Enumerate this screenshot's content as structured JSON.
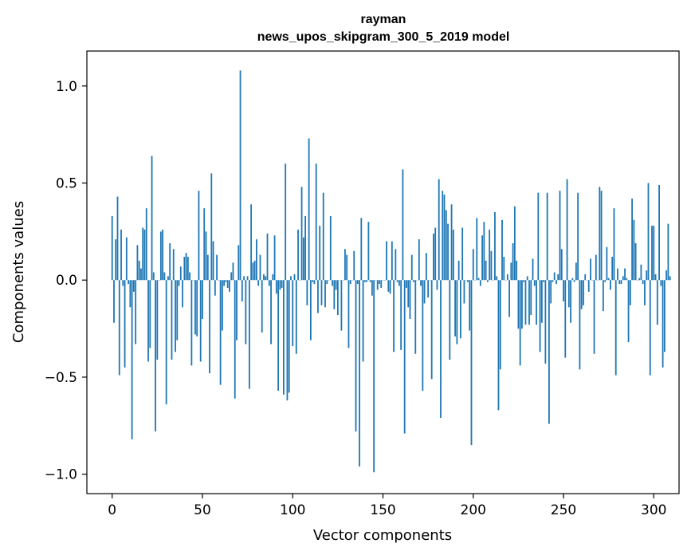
{
  "chart_data": {
    "type": "bar",
    "title": "rayman",
    "subtitle": "news_upos_skipgram_300_5_2019 model",
    "xlabel": "Vector components",
    "ylabel": "Components values",
    "xlim": [
      -14,
      314
    ],
    "ylim": [
      -1.1,
      1.18
    ],
    "xticks": [
      0,
      50,
      100,
      150,
      200,
      250,
      300
    ],
    "yticks": [
      -1.0,
      -0.5,
      0.0,
      0.5,
      1.0
    ],
    "xtick_labels": [
      "0",
      "50",
      "100",
      "150",
      "200",
      "250",
      "300"
    ],
    "ytick_labels": [
      "−1.0",
      "−0.5",
      "0.0",
      "0.5",
      "1.0"
    ],
    "bar_color": "#1f77b4",
    "grid": false,
    "values": [
      0.33,
      -0.22,
      0.21,
      0.43,
      -0.49,
      0.26,
      -0.03,
      -0.45,
      0.22,
      -0.02,
      -0.14,
      -0.82,
      -0.06,
      -0.33,
      0.18,
      0.1,
      0.06,
      0.27,
      0.26,
      0.37,
      -0.42,
      -0.35,
      0.64,
      0.04,
      -0.78,
      -0.41,
      0.0,
      0.25,
      0.26,
      0.04,
      -0.64,
      0.02,
      0.19,
      -0.41,
      0.16,
      -0.37,
      -0.31,
      -0.03,
      0.07,
      -0.14,
      0.12,
      0.14,
      0.12,
      0.04,
      -0.44,
      0.0,
      -0.28,
      -0.29,
      0.46,
      -0.42,
      -0.2,
      0.37,
      0.25,
      0.13,
      -0.48,
      0.55,
      0.2,
      -0.08,
      0.13,
      0.0,
      -0.54,
      -0.26,
      -0.03,
      -0.01,
      -0.04,
      -0.06,
      0.04,
      0.09,
      -0.61,
      -0.31,
      0.18,
      1.08,
      -0.11,
      0.02,
      -0.33,
      0.02,
      -0.56,
      0.39,
      0.09,
      0.1,
      0.21,
      -0.03,
      0.13,
      -0.27,
      0.03,
      0.02,
      0.24,
      -0.03,
      -0.33,
      0.03,
      0.23,
      -0.07,
      -0.57,
      -0.05,
      -0.04,
      -0.59,
      0.6,
      -0.62,
      -0.58,
      0.02,
      -0.34,
      0.03,
      -0.38,
      0.26,
      0.0,
      0.48,
      0.22,
      0.33,
      -0.13,
      0.73,
      -0.31,
      -0.01,
      -0.02,
      0.6,
      -0.17,
      0.28,
      -0.13,
      0.45,
      -0.14,
      -0.02,
      0.0,
      0.33,
      -0.03,
      -0.15,
      -0.05,
      -0.18,
      0.0,
      -0.26,
      0.0,
      0.16,
      0.13,
      -0.35,
      -0.02,
      0.0,
      0.15,
      -0.78,
      -0.02,
      -0.96,
      0.32,
      -0.42,
      -0.01,
      -0.01,
      0.3,
      -0.01,
      -0.08,
      -0.99,
      0.0,
      -0.05,
      -0.02,
      -0.04,
      0.0,
      0.0,
      0.2,
      -0.06,
      -0.07,
      0.2,
      -0.37,
      0.16,
      -0.01,
      -0.03,
      -0.36,
      0.57,
      -0.79,
      -0.04,
      -0.14,
      -0.2,
      0.13,
      -0.01,
      -0.38,
      0.0,
      0.21,
      -0.03,
      -0.57,
      -0.12,
      0.14,
      -0.09,
      0.0,
      -0.51,
      0.24,
      0.27,
      -0.05,
      0.52,
      -0.71,
      0.46,
      0.44,
      0.36,
      0.29,
      -0.41,
      0.39,
      0.26,
      -0.29,
      -0.33,
      0.1,
      -0.3,
      0.27,
      -0.12,
      0.0,
      -0.01,
      -0.26,
      -0.85,
      0.16,
      0.0,
      0.32,
      0.01,
      -0.03,
      0.23,
      0.3,
      0.1,
      -0.01,
      0.26,
      0.15,
      0.0,
      0.35,
      0.02,
      -0.67,
      -0.46,
      0.31,
      0.12,
      0.0,
      0.03,
      -0.19,
      0.09,
      0.19,
      0.38,
      0.1,
      -0.25,
      -0.44,
      -0.25,
      -0.01,
      -0.23,
      0.02,
      -0.23,
      -0.18,
      0.11,
      -0.03,
      -0.23,
      0.45,
      -0.37,
      -0.22,
      -0.01,
      -0.43,
      0.45,
      -0.74,
      -0.12,
      -0.01,
      0.04,
      -0.02,
      0.03,
      0.46,
      0.16,
      -0.11,
      -0.4,
      0.52,
      -0.14,
      -0.22,
      0.01,
      -0.01,
      0.09,
      0.45,
      -0.46,
      -0.15,
      -0.13,
      0.03,
      0.0,
      -0.06,
      0.11,
      0.0,
      -0.38,
      0.13,
      0.0,
      0.48,
      0.46,
      -0.16,
      -0.01,
      0.17,
      0.01,
      -0.05,
      0.12,
      0.37,
      -0.49,
      0.06,
      -0.02,
      -0.02,
      0.02,
      0.06,
      0.01,
      -0.32,
      -0.13,
      0.42,
      0.31,
      0.19,
      0.0,
      0.01,
      0.08,
      -0.02,
      -0.13,
      0.05,
      0.5,
      -0.49,
      0.28,
      0.28,
      0.03,
      -0.23,
      0.49,
      -0.03,
      -0.45,
      -0.37,
      0.05,
      0.29,
      0.02
    ]
  }
}
